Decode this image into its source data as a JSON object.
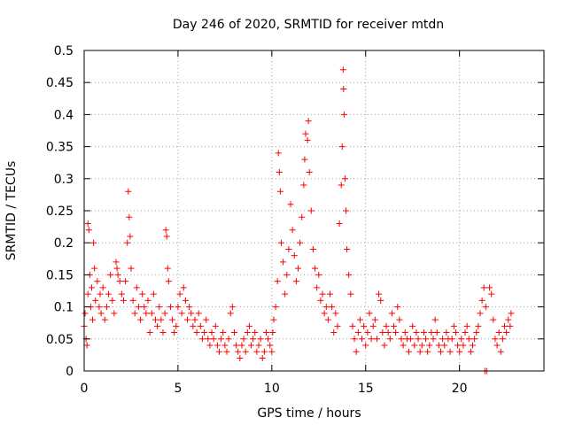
{
  "chart_data": {
    "type": "scatter",
    "title": "Day 246 of 2020, SRMTID for receiver mtdn",
    "xlabel": "GPS time / hours",
    "ylabel": "SRMTID / TECUs",
    "xlim": [
      0,
      24.5
    ],
    "ylim": [
      0,
      0.5
    ],
    "xticks": [
      0,
      5,
      10,
      15,
      20
    ],
    "xtick_labels": [
      "0",
      "5",
      "10",
      "15",
      "20"
    ],
    "yticks": [
      0,
      0.05,
      0.1,
      0.15,
      0.2,
      0.25,
      0.3,
      0.35,
      0.4,
      0.45,
      0.5
    ],
    "ytick_labels": [
      "0",
      "0.05",
      "0.1",
      "0.15",
      "0.2",
      "0.25",
      "0.3",
      "0.35",
      "0.4",
      "0.45",
      "0.5"
    ],
    "grid": true,
    "marker": "+",
    "marker_color": "#ff0000",
    "series": [
      {
        "name": "SRMTID",
        "points": [
          [
            0.0,
            0.07
          ],
          [
            0.05,
            0.09
          ],
          [
            0.1,
            0.05
          ],
          [
            0.15,
            0.04
          ],
          [
            0.2,
            0.12
          ],
          [
            0.2,
            0.23
          ],
          [
            0.25,
            0.22
          ],
          [
            0.3,
            0.15
          ],
          [
            0.35,
            0.1
          ],
          [
            0.4,
            0.13
          ],
          [
            0.45,
            0.08
          ],
          [
            0.5,
            0.2
          ],
          [
            0.55,
            0.16
          ],
          [
            0.6,
            0.11
          ],
          [
            0.7,
            0.14
          ],
          [
            0.8,
            0.1
          ],
          [
            0.85,
            0.12
          ],
          [
            0.9,
            0.09
          ],
          [
            1.0,
            0.13
          ],
          [
            1.1,
            0.08
          ],
          [
            1.2,
            0.1
          ],
          [
            1.3,
            0.12
          ],
          [
            1.4,
            0.15
          ],
          [
            1.5,
            0.11
          ],
          [
            1.6,
            0.09
          ],
          [
            1.7,
            0.17
          ],
          [
            1.75,
            0.16
          ],
          [
            1.8,
            0.15
          ],
          [
            1.9,
            0.14
          ],
          [
            2.0,
            0.12
          ],
          [
            2.1,
            0.11
          ],
          [
            2.2,
            0.14
          ],
          [
            2.3,
            0.2
          ],
          [
            2.35,
            0.28
          ],
          [
            2.4,
            0.24
          ],
          [
            2.45,
            0.21
          ],
          [
            2.5,
            0.16
          ],
          [
            2.6,
            0.11
          ],
          [
            2.7,
            0.09
          ],
          [
            2.8,
            0.13
          ],
          [
            2.9,
            0.1
          ],
          [
            3.0,
            0.08
          ],
          [
            3.1,
            0.12
          ],
          [
            3.2,
            0.1
          ],
          [
            3.3,
            0.09
          ],
          [
            3.4,
            0.11
          ],
          [
            3.5,
            0.06
          ],
          [
            3.6,
            0.09
          ],
          [
            3.7,
            0.12
          ],
          [
            3.8,
            0.08
          ],
          [
            3.9,
            0.07
          ],
          [
            4.0,
            0.1
          ],
          [
            4.1,
            0.08
          ],
          [
            4.2,
            0.06
          ],
          [
            4.3,
            0.09
          ],
          [
            4.35,
            0.22
          ],
          [
            4.4,
            0.21
          ],
          [
            4.45,
            0.16
          ],
          [
            4.5,
            0.14
          ],
          [
            4.6,
            0.1
          ],
          [
            4.7,
            0.08
          ],
          [
            4.8,
            0.06
          ],
          [
            4.9,
            0.07
          ],
          [
            5.0,
            0.1
          ],
          [
            5.1,
            0.12
          ],
          [
            5.2,
            0.09
          ],
          [
            5.3,
            0.13
          ],
          [
            5.4,
            0.11
          ],
          [
            5.5,
            0.08
          ],
          [
            5.6,
            0.1
          ],
          [
            5.7,
            0.09
          ],
          [
            5.8,
            0.07
          ],
          [
            5.9,
            0.08
          ],
          [
            6.0,
            0.06
          ],
          [
            6.1,
            0.09
          ],
          [
            6.2,
            0.07
          ],
          [
            6.3,
            0.05
          ],
          [
            6.4,
            0.06
          ],
          [
            6.5,
            0.08
          ],
          [
            6.6,
            0.05
          ],
          [
            6.7,
            0.04
          ],
          [
            6.8,
            0.06
          ],
          [
            6.9,
            0.05
          ],
          [
            7.0,
            0.07
          ],
          [
            7.1,
            0.04
          ],
          [
            7.2,
            0.03
          ],
          [
            7.3,
            0.05
          ],
          [
            7.4,
            0.06
          ],
          [
            7.5,
            0.04
          ],
          [
            7.6,
            0.03
          ],
          [
            7.7,
            0.05
          ],
          [
            7.8,
            0.09
          ],
          [
            7.9,
            0.1
          ],
          [
            8.0,
            0.06
          ],
          [
            8.1,
            0.04
          ],
          [
            8.2,
            0.03
          ],
          [
            8.3,
            0.02
          ],
          [
            8.4,
            0.04
          ],
          [
            8.5,
            0.05
          ],
          [
            8.6,
            0.03
          ],
          [
            8.7,
            0.06
          ],
          [
            8.8,
            0.07
          ],
          [
            8.9,
            0.04
          ],
          [
            9.0,
            0.05
          ],
          [
            9.1,
            0.06
          ],
          [
            9.2,
            0.03
          ],
          [
            9.3,
            0.04
          ],
          [
            9.4,
            0.05
          ],
          [
            9.5,
            0.02
          ],
          [
            9.6,
            0.03
          ],
          [
            9.7,
            0.06
          ],
          [
            9.8,
            0.05
          ],
          [
            9.9,
            0.04
          ],
          [
            10.0,
            0.03
          ],
          [
            10.05,
            0.06
          ],
          [
            10.1,
            0.08
          ],
          [
            10.2,
            0.1
          ],
          [
            10.3,
            0.14
          ],
          [
            10.35,
            0.34
          ],
          [
            10.4,
            0.31
          ],
          [
            10.45,
            0.28
          ],
          [
            10.5,
            0.2
          ],
          [
            10.6,
            0.17
          ],
          [
            10.7,
            0.12
          ],
          [
            10.8,
            0.15
          ],
          [
            10.9,
            0.19
          ],
          [
            11.0,
            0.26
          ],
          [
            11.1,
            0.22
          ],
          [
            11.2,
            0.18
          ],
          [
            11.3,
            0.14
          ],
          [
            11.4,
            0.16
          ],
          [
            11.5,
            0.2
          ],
          [
            11.6,
            0.24
          ],
          [
            11.7,
            0.29
          ],
          [
            11.75,
            0.33
          ],
          [
            11.8,
            0.37
          ],
          [
            11.9,
            0.36
          ],
          [
            11.95,
            0.39
          ],
          [
            12.0,
            0.31
          ],
          [
            12.1,
            0.25
          ],
          [
            12.2,
            0.19
          ],
          [
            12.3,
            0.16
          ],
          [
            12.4,
            0.13
          ],
          [
            12.5,
            0.15
          ],
          [
            12.6,
            0.11
          ],
          [
            12.7,
            0.12
          ],
          [
            12.8,
            0.09
          ],
          [
            12.9,
            0.1
          ],
          [
            13.0,
            0.08
          ],
          [
            13.1,
            0.12
          ],
          [
            13.2,
            0.1
          ],
          [
            13.3,
            0.06
          ],
          [
            13.4,
            0.09
          ],
          [
            13.5,
            0.07
          ],
          [
            13.6,
            0.23
          ],
          [
            13.7,
            0.29
          ],
          [
            13.75,
            0.35
          ],
          [
            13.8,
            0.47
          ],
          [
            13.82,
            0.44
          ],
          [
            13.85,
            0.4
          ],
          [
            13.9,
            0.3
          ],
          [
            13.95,
            0.25
          ],
          [
            14.0,
            0.19
          ],
          [
            14.1,
            0.15
          ],
          [
            14.2,
            0.12
          ],
          [
            14.3,
            0.07
          ],
          [
            14.4,
            0.05
          ],
          [
            14.5,
            0.03
          ],
          [
            14.6,
            0.06
          ],
          [
            14.7,
            0.08
          ],
          [
            14.8,
            0.05
          ],
          [
            14.9,
            0.07
          ],
          [
            15.0,
            0.04
          ],
          [
            15.1,
            0.06
          ],
          [
            15.2,
            0.09
          ],
          [
            15.3,
            0.05
          ],
          [
            15.4,
            0.07
          ],
          [
            15.5,
            0.08
          ],
          [
            15.6,
            0.05
          ],
          [
            15.7,
            0.12
          ],
          [
            15.8,
            0.11
          ],
          [
            15.9,
            0.06
          ],
          [
            16.0,
            0.04
          ],
          [
            16.1,
            0.07
          ],
          [
            16.2,
            0.06
          ],
          [
            16.3,
            0.05
          ],
          [
            16.4,
            0.09
          ],
          [
            16.5,
            0.07
          ],
          [
            16.6,
            0.06
          ],
          [
            16.7,
            0.1
          ],
          [
            16.8,
            0.08
          ],
          [
            16.9,
            0.05
          ],
          [
            17.0,
            0.04
          ],
          [
            17.1,
            0.06
          ],
          [
            17.2,
            0.05
          ],
          [
            17.3,
            0.03
          ],
          [
            17.4,
            0.05
          ],
          [
            17.5,
            0.07
          ],
          [
            17.6,
            0.04
          ],
          [
            17.7,
            0.06
          ],
          [
            17.8,
            0.05
          ],
          [
            17.9,
            0.03
          ],
          [
            18.0,
            0.04
          ],
          [
            18.1,
            0.06
          ],
          [
            18.2,
            0.05
          ],
          [
            18.3,
            0.03
          ],
          [
            18.4,
            0.04
          ],
          [
            18.5,
            0.06
          ],
          [
            18.6,
            0.05
          ],
          [
            18.7,
            0.08
          ],
          [
            18.8,
            0.06
          ],
          [
            18.9,
            0.04
          ],
          [
            19.0,
            0.03
          ],
          [
            19.1,
            0.05
          ],
          [
            19.2,
            0.04
          ],
          [
            19.3,
            0.06
          ],
          [
            19.4,
            0.05
          ],
          [
            19.5,
            0.03
          ],
          [
            19.6,
            0.05
          ],
          [
            19.7,
            0.07
          ],
          [
            19.8,
            0.06
          ],
          [
            19.9,
            0.04
          ],
          [
            20.0,
            0.03
          ],
          [
            20.1,
            0.05
          ],
          [
            20.2,
            0.04
          ],
          [
            20.3,
            0.06
          ],
          [
            20.4,
            0.07
          ],
          [
            20.5,
            0.05
          ],
          [
            20.6,
            0.03
          ],
          [
            20.7,
            0.04
          ],
          [
            20.8,
            0.05
          ],
          [
            20.9,
            0.06
          ],
          [
            21.0,
            0.07
          ],
          [
            21.1,
            0.09
          ],
          [
            21.2,
            0.11
          ],
          [
            21.3,
            0.13
          ],
          [
            21.4,
            0.1
          ],
          [
            21.35,
            0.0
          ],
          [
            21.45,
            0.0
          ],
          [
            21.6,
            0.13
          ],
          [
            21.7,
            0.12
          ],
          [
            21.8,
            0.08
          ],
          [
            21.9,
            0.05
          ],
          [
            22.0,
            0.04
          ],
          [
            22.1,
            0.06
          ],
          [
            22.2,
            0.03
          ],
          [
            22.3,
            0.05
          ],
          [
            22.4,
            0.07
          ],
          [
            22.5,
            0.06
          ],
          [
            22.6,
            0.08
          ],
          [
            22.7,
            0.07
          ],
          [
            22.75,
            0.09
          ]
        ]
      }
    ]
  }
}
